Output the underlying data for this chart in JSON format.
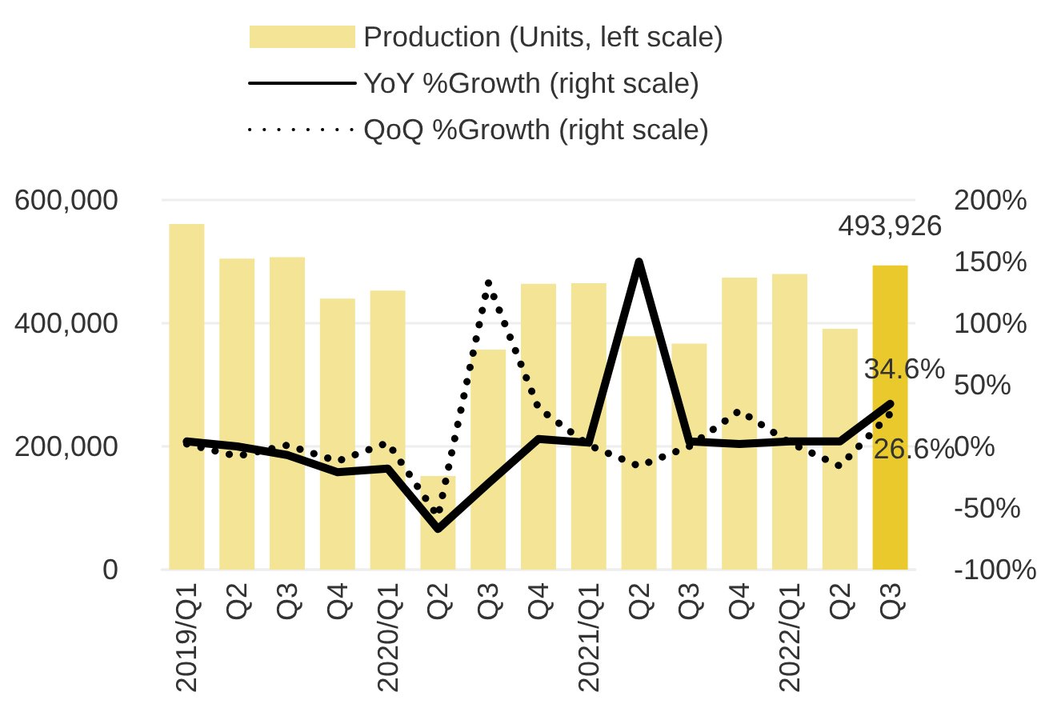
{
  "chart_data": {
    "type": "bar",
    "categories": [
      "2019/Q1",
      "Q2",
      "Q3",
      "Q4",
      "2020/Q1",
      "Q2",
      "Q3",
      "Q4",
      "2021/Q1",
      "Q2",
      "Q3",
      "Q4",
      "2022/Q1",
      "Q2",
      "Q3"
    ],
    "series": [
      {
        "name": "Production (Units, left scale)",
        "color": "#f3e496",
        "colors": [
          "#f3e496",
          "#f3e496",
          "#f3e496",
          "#f3e496",
          "#f3e496",
          "#f3e496",
          "#f3e496",
          "#f3e496",
          "#f3e496",
          "#f3e496",
          "#f3e496",
          "#f3e496",
          "#f3e496",
          "#f3e496",
          "#e9c92b"
        ],
        "values": [
          561000,
          505000,
          507000,
          440000,
          453000,
          152000,
          357000,
          464000,
          465000,
          379000,
          367000,
          474000,
          480000,
          391000,
          493926
        ],
        "value_labels": [
          null,
          null,
          null,
          null,
          null,
          null,
          null,
          null,
          null,
          null,
          null,
          null,
          null,
          null,
          "493,926"
        ]
      },
      {
        "name": "YoY %Growth (right scale)",
        "type": "line",
        "axis": "y2",
        "color": "#000000",
        "line_style": "solid",
        "values": [
          4,
          0,
          -7,
          -21,
          -18,
          -67,
          -30,
          6,
          3,
          150,
          4,
          2,
          4,
          4,
          34.6
        ],
        "value_labels": [
          null,
          null,
          null,
          null,
          null,
          null,
          null,
          null,
          null,
          null,
          null,
          null,
          null,
          null,
          "34.6%"
        ]
      },
      {
        "name": "QoQ %Growth (right scale)",
        "type": "line",
        "axis": "y2",
        "color": "#000000",
        "line_style": "dotted",
        "values": [
          2,
          -8,
          1,
          -12,
          3,
          -57,
          133,
          31,
          1,
          -16,
          0,
          29,
          3,
          -16,
          26.6
        ],
        "value_labels": [
          null,
          null,
          null,
          null,
          null,
          null,
          null,
          null,
          null,
          null,
          null,
          null,
          null,
          null,
          "26.6%"
        ]
      }
    ],
    "ylim": [
      0,
      600000
    ],
    "yticks": [
      {
        "value": 0,
        "label": "0"
      },
      {
        "value": 200000,
        "label": "200,000"
      },
      {
        "value": 400000,
        "label": "400,000"
      },
      {
        "value": 600000,
        "label": "600,000"
      }
    ],
    "y2lim": [
      -100,
      200
    ],
    "y2ticks": [
      {
        "value": -100,
        "label": "-100%"
      },
      {
        "value": -50,
        "label": "-50%"
      },
      {
        "value": 0,
        "label": "0%"
      },
      {
        "value": 50,
        "label": "50%"
      },
      {
        "value": 100,
        "label": "100%"
      },
      {
        "value": 150,
        "label": "150%"
      },
      {
        "value": 200,
        "label": "200%"
      }
    ],
    "grid": "y",
    "legend": "top",
    "marker": "none"
  }
}
